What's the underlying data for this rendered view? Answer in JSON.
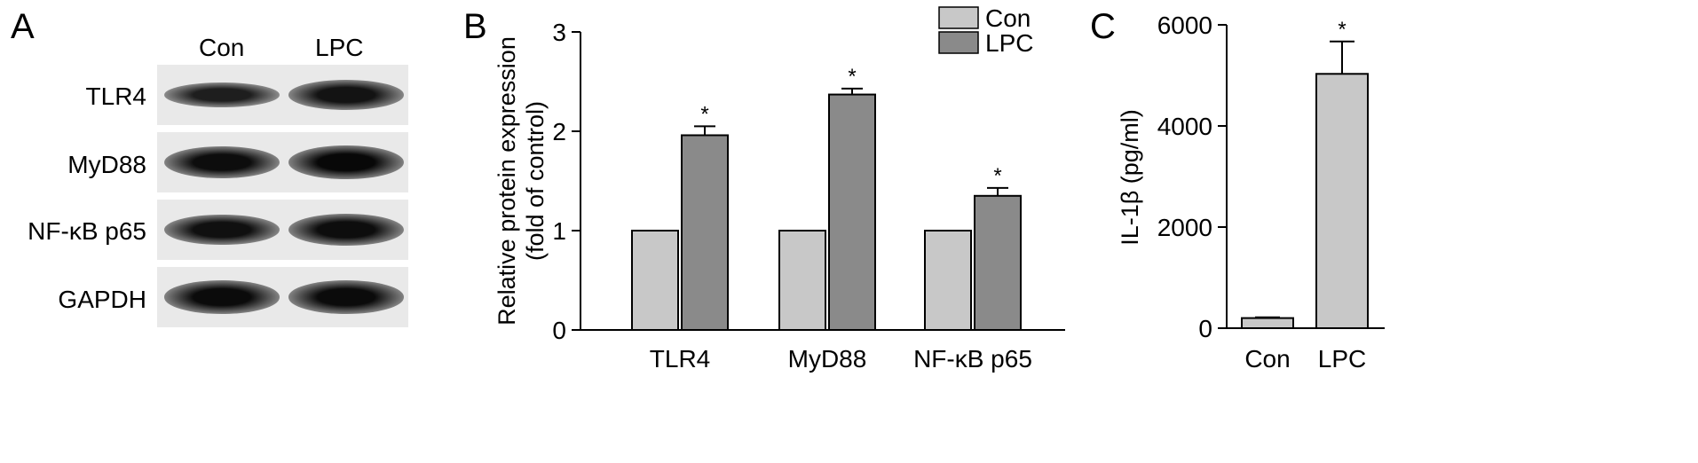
{
  "panels": {
    "a": "A",
    "b": "B",
    "c": "C"
  },
  "blot": {
    "lanes": [
      "Con",
      "LPC"
    ],
    "bands": [
      {
        "label": "TLR4",
        "intensity": [
          0.55,
          0.75
        ]
      },
      {
        "label": "MyD88",
        "intensity": [
          0.85,
          0.95
        ]
      },
      {
        "label": "NF-κB p65",
        "intensity": [
          0.8,
          0.85
        ]
      },
      {
        "label": "GAPDH",
        "intensity": [
          0.9,
          0.9
        ]
      }
    ]
  },
  "chart_data": [
    {
      "type": "bar",
      "categories": [
        "TLR4",
        "MyD88",
        "NF-κB p65"
      ],
      "series": [
        {
          "name": "Con",
          "values": [
            1.0,
            1.0,
            1.0
          ],
          "errors": [
            0,
            0,
            0
          ],
          "color": "#c8c8c8",
          "stars": [
            "",
            "",
            ""
          ]
        },
        {
          "name": "LPC",
          "values": [
            1.96,
            2.37,
            1.35
          ],
          "errors": [
            0.09,
            0.06,
            0.08
          ],
          "color": "#8a8a8a",
          "stars": [
            "*",
            "*",
            "*"
          ]
        }
      ],
      "ylabel": [
        "Relative protein expression",
        "(fold of control)"
      ],
      "ylim": [
        0,
        3
      ],
      "yticks": [
        "0",
        "1",
        "2",
        "3"
      ],
      "legend": "top-right"
    },
    {
      "type": "bar",
      "categories": [
        "Con",
        "LPC"
      ],
      "values": [
        200,
        5030
      ],
      "errors": [
        15,
        640
      ],
      "stars": [
        "",
        "*"
      ],
      "color": "#c8c8c8",
      "ylabel": "IL-1β (pg/ml)",
      "ylim": [
        0,
        6000
      ],
      "yticks": [
        "0",
        "2000",
        "4000",
        "6000"
      ]
    }
  ]
}
